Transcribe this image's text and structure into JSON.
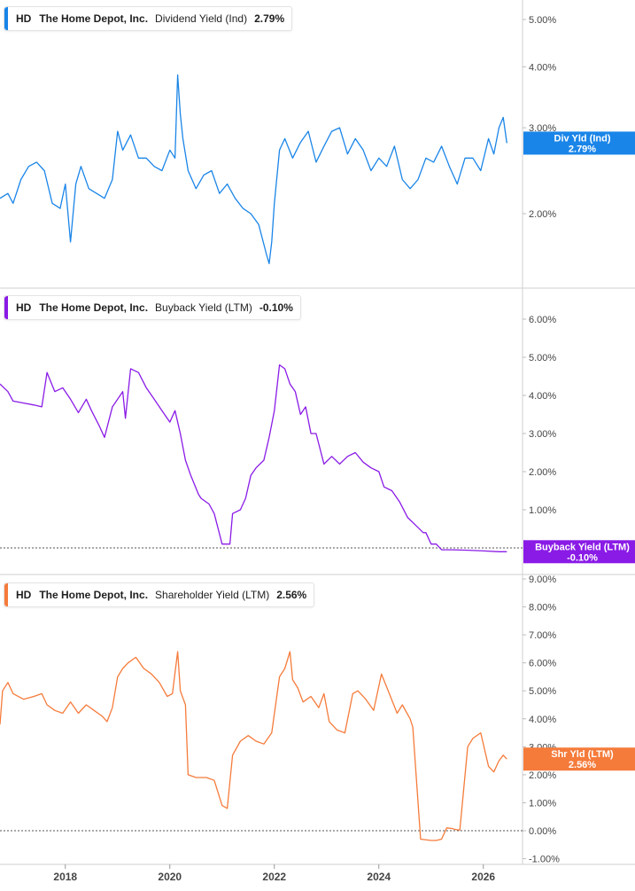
{
  "panels": [
    {
      "ticker": "HD",
      "company": "The Home Depot, Inc.",
      "metric": "Dividend Yield (Ind)",
      "current": "2.79%",
      "color": "#1a85e8",
      "flag": {
        "line1": "Div Yld (Ind)",
        "line2": "2.79%",
        "value": 2.79
      },
      "ticks": [
        {
          "label": "5.00%",
          "value": 5.0
        },
        {
          "label": "4.00%",
          "value": 4.0
        },
        {
          "label": "3.00%",
          "value": 3.0
        },
        {
          "label": "2.00%",
          "value": 2.0
        }
      ]
    },
    {
      "ticker": "HD",
      "company": "The Home Depot, Inc.",
      "metric": "Buyback Yield (LTM)",
      "current": "-0.10%",
      "color": "#8a1be6",
      "flag": {
        "line1": "Buyback Yield (LTM)",
        "line2": "-0.10%",
        "value": -0.1
      },
      "ticks": [
        {
          "label": "6.00%",
          "value": 6.0
        },
        {
          "label": "5.00%",
          "value": 5.0
        },
        {
          "label": "4.00%",
          "value": 4.0
        },
        {
          "label": "3.00%",
          "value": 3.0
        },
        {
          "label": "2.00%",
          "value": 2.0
        },
        {
          "label": "1.00%",
          "value": 1.0
        }
      ]
    },
    {
      "ticker": "HD",
      "company": "The Home Depot, Inc.",
      "metric": "Shareholder Yield (LTM)",
      "current": "2.56%",
      "color": "#f57b3b",
      "flag": {
        "line1": "Shr Yld (LTM)",
        "line2": "2.56%",
        "value": 2.56
      },
      "ticks": [
        {
          "label": "9.00%",
          "value": 9.0
        },
        {
          "label": "8.00%",
          "value": 8.0
        },
        {
          "label": "7.00%",
          "value": 7.0
        },
        {
          "label": "6.00%",
          "value": 6.0
        },
        {
          "label": "5.00%",
          "value": 5.0
        },
        {
          "label": "4.00%",
          "value": 4.0
        },
        {
          "label": "3.00%",
          "value": 3.0
        },
        {
          "label": "2.00%",
          "value": 2.0
        },
        {
          "label": "1.00%",
          "value": 1.0
        },
        {
          "label": "0.00%",
          "value": 0.0
        },
        {
          "label": "-1.00%",
          "value": -1.0
        }
      ]
    }
  ],
  "x_ticks": [
    {
      "label": "2018",
      "value": 2018
    },
    {
      "label": "2020",
      "value": 2020
    },
    {
      "label": "2022",
      "value": 2022
    },
    {
      "label": "2024",
      "value": 2024
    },
    {
      "label": "2026",
      "value": 2026
    }
  ],
  "chart_data": [
    {
      "type": "line",
      "title": "HD The Home Depot, Inc. Dividend Yield (Ind) 2.79%",
      "ylabel": "",
      "xlabel": "",
      "ylim": [
        1.35,
        5.4
      ],
      "xlim": [
        2016.75,
        2026.75
      ],
      "grid": false,
      "series": [
        {
          "name": "Dividend Yield (Ind)",
          "x": [
            2016.75,
            2016.9,
            2017.0,
            2017.15,
            2017.3,
            2017.45,
            2017.6,
            2017.75,
            2017.9,
            2018.0,
            2018.1,
            2018.2,
            2018.3,
            2018.45,
            2018.6,
            2018.75,
            2018.9,
            2019.0,
            2019.1,
            2019.25,
            2019.4,
            2019.55,
            2019.7,
            2019.85,
            2020.0,
            2020.1,
            2020.15,
            2020.2,
            2020.25,
            2020.35,
            2020.5,
            2020.65,
            2020.8,
            2020.95,
            2021.1,
            2021.25,
            2021.4,
            2021.55,
            2021.7,
            2021.85,
            2021.9,
            2021.95,
            2022.0,
            2022.1,
            2022.2,
            2022.35,
            2022.5,
            2022.65,
            2022.8,
            2022.95,
            2023.1,
            2023.25,
            2023.4,
            2023.55,
            2023.7,
            2023.85,
            2024.0,
            2024.15,
            2024.3,
            2024.45,
            2024.6,
            2024.75,
            2024.9,
            2025.05,
            2025.2,
            2025.35,
            2025.5,
            2025.65,
            2025.8,
            2025.95,
            2026.1,
            2026.2,
            2026.3,
            2026.38,
            2026.45
          ],
          "values": [
            2.15,
            2.2,
            2.1,
            2.35,
            2.5,
            2.55,
            2.45,
            2.1,
            2.05,
            2.3,
            1.75,
            2.3,
            2.5,
            2.25,
            2.2,
            2.15,
            2.35,
            2.95,
            2.7,
            2.9,
            2.6,
            2.6,
            2.5,
            2.45,
            2.7,
            2.6,
            3.85,
            3.2,
            2.85,
            2.45,
            2.25,
            2.4,
            2.45,
            2.2,
            2.3,
            2.15,
            2.05,
            2.0,
            1.9,
            1.65,
            1.58,
            1.75,
            2.1,
            2.7,
            2.85,
            2.6,
            2.8,
            2.95,
            2.55,
            2.75,
            2.95,
            3.0,
            2.65,
            2.85,
            2.7,
            2.45,
            2.6,
            2.5,
            2.75,
            2.35,
            2.25,
            2.35,
            2.6,
            2.55,
            2.75,
            2.5,
            2.3,
            2.6,
            2.6,
            2.45,
            2.85,
            2.65,
            3.0,
            3.15,
            2.79
          ]
        }
      ]
    },
    {
      "type": "line",
      "title": "HD The Home Depot, Inc. Buyback Yield (LTM) -0.10%",
      "ylabel": "",
      "xlabel": "",
      "ylim": [
        -0.7,
        6.9
      ],
      "xlim": [
        2016.75,
        2026.75
      ],
      "grid": false,
      "series": [
        {
          "name": "Buyback Yield (LTM)",
          "x": [
            2016.75,
            2016.9,
            2017.0,
            2017.2,
            2017.4,
            2017.55,
            2017.65,
            2017.8,
            2017.95,
            2018.1,
            2018.25,
            2018.4,
            2018.5,
            2018.65,
            2018.75,
            2018.9,
            2019.1,
            2019.15,
            2019.25,
            2019.4,
            2019.55,
            2019.7,
            2019.85,
            2020.0,
            2020.1,
            2020.2,
            2020.3,
            2020.4,
            2020.55,
            2020.6,
            2020.75,
            2020.85,
            2021.0,
            2021.15,
            2021.2,
            2021.35,
            2021.45,
            2021.55,
            2021.65,
            2021.8,
            2021.9,
            2022.0,
            2022.1,
            2022.2,
            2022.3,
            2022.4,
            2022.5,
            2022.6,
            2022.7,
            2022.8,
            2022.95,
            2023.1,
            2023.25,
            2023.4,
            2023.55,
            2023.7,
            2023.85,
            2024.0,
            2024.1,
            2024.25,
            2024.4,
            2024.55,
            2024.7,
            2024.85,
            2024.9,
            2025.0,
            2025.1,
            2025.2,
            2025.4,
            2025.7,
            2026.0,
            2026.3,
            2026.45
          ],
          "values": [
            4.3,
            4.1,
            3.85,
            3.8,
            3.75,
            3.7,
            4.6,
            4.1,
            4.2,
            3.9,
            3.55,
            3.9,
            3.6,
            3.2,
            2.9,
            3.7,
            4.1,
            3.4,
            4.7,
            4.6,
            4.2,
            3.9,
            3.6,
            3.3,
            3.6,
            3.0,
            2.3,
            1.9,
            1.4,
            1.3,
            1.15,
            0.9,
            0.1,
            0.1,
            0.9,
            1.0,
            1.3,
            1.9,
            2.1,
            2.3,
            2.9,
            3.6,
            4.8,
            4.7,
            4.3,
            4.1,
            3.5,
            3.7,
            3.0,
            3.0,
            2.2,
            2.4,
            2.2,
            2.4,
            2.5,
            2.25,
            2.1,
            2.0,
            1.6,
            1.5,
            1.2,
            0.8,
            0.6,
            0.4,
            0.4,
            0.1,
            0.1,
            -0.05,
            -0.05,
            -0.06,
            -0.08,
            -0.1,
            -0.1
          ]
        }
      ]
    },
    {
      "type": "line",
      "title": "HD The Home Depot, Inc. Shareholder Yield (LTM) 2.56%",
      "ylabel": "",
      "xlabel": "",
      "ylim": [
        -1.2,
        9.5
      ],
      "xlim": [
        2016.75,
        2026.75
      ],
      "grid": false,
      "series": [
        {
          "name": "Shareholder Yield (LTM)",
          "x": [
            2016.75,
            2016.8,
            2016.9,
            2017.0,
            2017.2,
            2017.4,
            2017.55,
            2017.65,
            2017.8,
            2017.95,
            2018.1,
            2018.25,
            2018.4,
            2018.55,
            2018.7,
            2018.8,
            2018.9,
            2019.0,
            2019.1,
            2019.2,
            2019.35,
            2019.5,
            2019.65,
            2019.8,
            2019.95,
            2020.05,
            2020.15,
            2020.2,
            2020.3,
            2020.35,
            2020.5,
            2020.7,
            2020.85,
            2021.0,
            2021.1,
            2021.2,
            2021.35,
            2021.5,
            2021.65,
            2021.8,
            2021.95,
            2022.1,
            2022.2,
            2022.3,
            2022.35,
            2022.45,
            2022.55,
            2022.7,
            2022.85,
            2022.95,
            2023.05,
            2023.2,
            2023.35,
            2023.5,
            2023.6,
            2023.75,
            2023.9,
            2024.05,
            2024.2,
            2024.35,
            2024.45,
            2024.6,
            2024.65,
            2024.8,
            2025.0,
            2025.1,
            2025.2,
            2025.3,
            2025.4,
            2025.45,
            2025.55,
            2025.7,
            2025.8,
            2025.95,
            2026.1,
            2026.2,
            2026.3,
            2026.38,
            2026.45
          ],
          "values": [
            3.8,
            5.0,
            5.3,
            4.9,
            4.7,
            4.8,
            4.9,
            4.5,
            4.3,
            4.2,
            4.6,
            4.2,
            4.5,
            4.3,
            4.1,
            3.9,
            4.4,
            5.5,
            5.8,
            6.0,
            6.2,
            5.8,
            5.6,
            5.3,
            4.8,
            4.9,
            6.4,
            5.0,
            4.5,
            2.0,
            1.9,
            1.9,
            1.8,
            0.9,
            0.8,
            2.7,
            3.2,
            3.4,
            3.2,
            3.1,
            3.5,
            5.5,
            5.8,
            6.4,
            5.4,
            5.1,
            4.6,
            4.8,
            4.4,
            4.9,
            3.9,
            3.6,
            3.5,
            4.9,
            5.0,
            4.7,
            4.3,
            5.6,
            4.9,
            4.2,
            4.5,
            4.0,
            3.7,
            -0.3,
            -0.35,
            -0.35,
            -0.3,
            0.1,
            0.08,
            0.05,
            0.02,
            3.0,
            3.3,
            3.5,
            2.3,
            2.1,
            2.5,
            2.7,
            2.56
          ]
        }
      ]
    }
  ]
}
